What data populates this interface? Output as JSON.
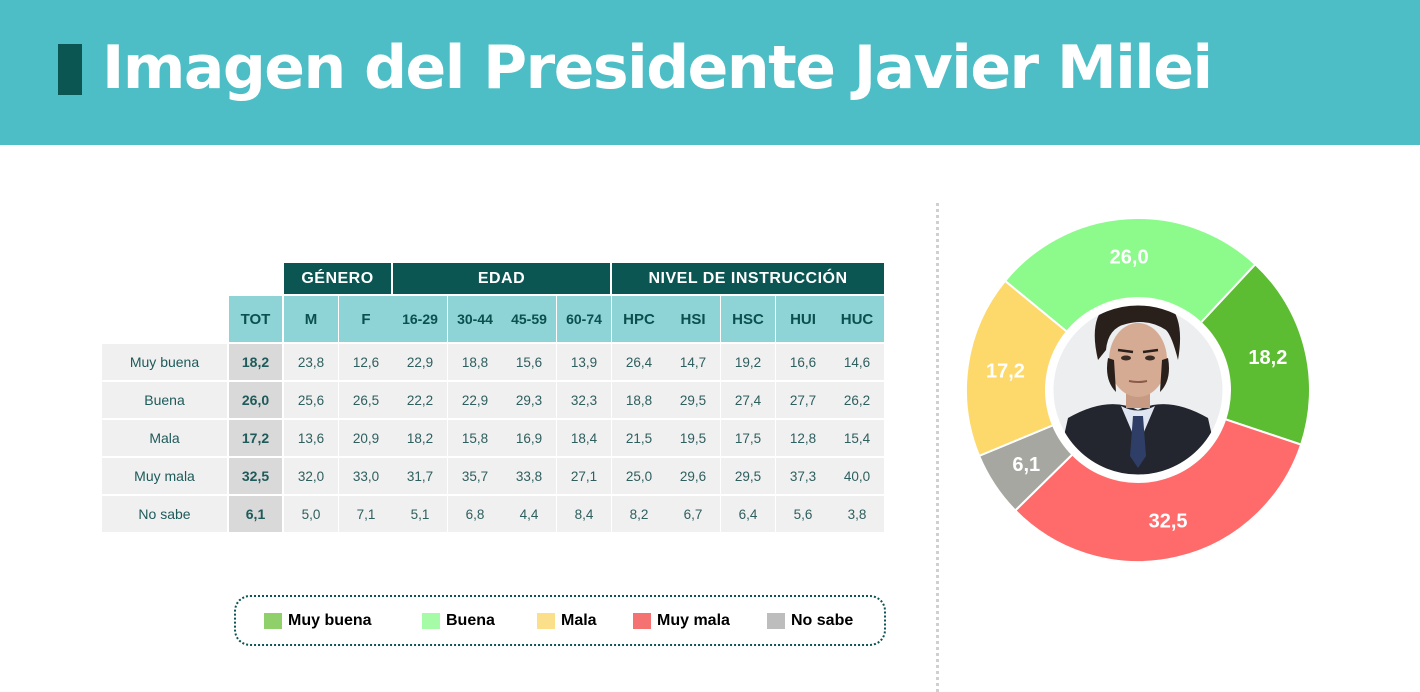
{
  "title": "Imagen del Presidente Javier Milei",
  "table": {
    "groups": [
      "GÉNERO",
      "EDAD",
      "NIVEL DE INSTRUCCIÓN"
    ],
    "tot_label": "TOT",
    "columns": [
      "M",
      "F",
      "16-29",
      "30-44",
      "45-59",
      "60-74",
      "HPC",
      "HSI",
      "HSC",
      "HUI",
      "HUC"
    ],
    "rows": [
      {
        "label": "Muy buena",
        "tot": "18,2",
        "values": [
          "23,8",
          "12,6",
          "22,9",
          "18,8",
          "15,6",
          "13,9",
          "26,4",
          "14,7",
          "19,2",
          "16,6",
          "14,6"
        ]
      },
      {
        "label": "Buena",
        "tot": "26,0",
        "values": [
          "25,6",
          "26,5",
          "22,2",
          "22,9",
          "29,3",
          "32,3",
          "18,8",
          "29,5",
          "27,4",
          "27,7",
          "26,2"
        ]
      },
      {
        "label": "Mala",
        "tot": "17,2",
        "values": [
          "13,6",
          "20,9",
          "18,2",
          "15,8",
          "16,9",
          "18,4",
          "21,5",
          "19,5",
          "17,5",
          "12,8",
          "15,4"
        ]
      },
      {
        "label": "Muy mala",
        "tot": "32,5",
        "values": [
          "32,0",
          "33,0",
          "31,7",
          "35,7",
          "33,8",
          "27,1",
          "25,0",
          "29,6",
          "29,5",
          "37,3",
          "40,0"
        ]
      },
      {
        "label": "No sabe",
        "tot": "6,1",
        "values": [
          "5,0",
          "7,1",
          "5,1",
          "6,8",
          "4,4",
          "8,4",
          "8,2",
          "6,7",
          "6,4",
          "5,6",
          "3,8"
        ]
      }
    ]
  },
  "legend": [
    {
      "label": "Muy buena",
      "color": "#8fd06a"
    },
    {
      "label": "Buena",
      "color": "#a6fca6"
    },
    {
      "label": "Mala",
      "color": "#fbdf8a"
    },
    {
      "label": "Muy mala",
      "color": "#f57272"
    },
    {
      "label": "No sabe",
      "color": "#bdbdbd"
    }
  ],
  "chart_data": {
    "type": "pie",
    "variant": "donut",
    "categories": [
      "Muy buena",
      "Muy mala",
      "No sabe",
      "Mala",
      "Buena"
    ],
    "values": [
      18.2,
      32.5,
      6.1,
      17.2,
      26.0
    ],
    "value_labels": [
      "18,2",
      "32,5",
      "6,1",
      "17,2",
      "26,0"
    ],
    "colors": [
      "#5dbd32",
      "#ff6b6b",
      "#a7a7a2",
      "#fdd86b",
      "#8cfb8c"
    ],
    "center_image": "portrait of Javier Milei"
  }
}
